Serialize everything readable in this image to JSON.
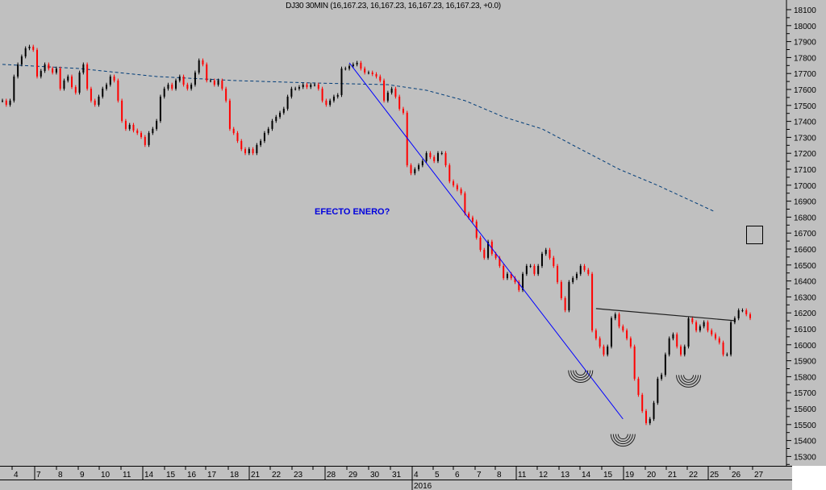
{
  "header": {
    "title": "DJ30 30MIN (16,167.23, 16,167.23, 16,167.23, 16,167.23, +0.0)"
  },
  "annotation": {
    "text": "EFECTO ENERO?",
    "color": "#0000dd"
  },
  "colors": {
    "background": "#c0c0c0",
    "up": "#000000",
    "down": "#ff0000",
    "trendline": "#0000ff",
    "moving_average": "#003c78",
    "resistance": "#202020"
  },
  "chart_data": {
    "type": "candlestick",
    "symbol": "DJ30",
    "timeframe": "30MIN",
    "ylim": [
      15250,
      18150
    ],
    "y_ticks": [
      18100,
      18000,
      17900,
      17800,
      17700,
      17600,
      17500,
      17400,
      17300,
      17200,
      17100,
      17000,
      16900,
      16800,
      16700,
      16600,
      16500,
      16400,
      16300,
      16200,
      16100,
      16000,
      15900,
      15800,
      15700,
      15600,
      15500,
      15400,
      15300
    ],
    "x_ticks": [
      "4",
      "7",
      "8",
      "9",
      "10",
      "11",
      "14",
      "15",
      "16",
      "17",
      "18",
      "21",
      "22",
      "23",
      "",
      "28",
      "29",
      "30",
      "31",
      "4",
      "5",
      "6",
      "7",
      "8",
      "11",
      "12",
      "13",
      "14",
      "15",
      "19",
      "20",
      "21",
      "22",
      "25",
      "26",
      "27"
    ],
    "x_year_label": "2016",
    "grid": false,
    "closes": [
      17530,
      17504,
      17530,
      17681,
      17757,
      17807,
      17858,
      17868,
      17848,
      17681,
      17716,
      17757,
      17731,
      17706,
      17731,
      17605,
      17656,
      17681,
      17615,
      17580,
      17706,
      17757,
      17605,
      17530,
      17504,
      17555,
      17605,
      17630,
      17681,
      17656,
      17530,
      17403,
      17353,
      17378,
      17343,
      17327,
      17302,
      17252,
      17327,
      17353,
      17403,
      17555,
      17605,
      17630,
      17605,
      17656,
      17681,
      17630,
      17605,
      17630,
      17706,
      17782,
      17757,
      17656,
      17656,
      17630,
      17656,
      17605,
      17530,
      17353,
      17327,
      17277,
      17226,
      17201,
      17226,
      17201,
      17252,
      17277,
      17327,
      17353,
      17403,
      17428,
      17454,
      17479,
      17555,
      17605,
      17605,
      17615,
      17630,
      17615,
      17630,
      17630,
      17605,
      17530,
      17504,
      17530,
      17555,
      17565,
      17731,
      17731,
      17746,
      17757,
      17767,
      17731,
      17706,
      17706,
      17696,
      17681,
      17656,
      17530,
      17580,
      17605,
      17555,
      17479,
      17454,
      17125,
      17075,
      17100,
      17125,
      17151,
      17201,
      17176,
      17151,
      17201,
      17201,
      17125,
      17024,
      16999,
      16974,
      16949,
      16822,
      16797,
      16772,
      16671,
      16595,
      16545,
      16646,
      16570,
      16545,
      16494,
      16418,
      16444,
      16418,
      16393,
      16343,
      16444,
      16494,
      16494,
      16444,
      16494,
      16570,
      16595,
      16545,
      16494,
      16393,
      16292,
      16216,
      16393,
      16418,
      16444,
      16494,
      16469,
      16444,
      16090,
      16040,
      15989,
      15939,
      15989,
      16166,
      16191,
      16115,
      16090,
      16040,
      15989,
      15787,
      15686,
      15585,
      15509,
      15535,
      15636,
      15787,
      15812,
      15939,
      16040,
      16065,
      15989,
      15939,
      15989,
      16166,
      16141,
      16090,
      16115,
      16141,
      16090,
      16065,
      16040,
      16014,
      15939,
      15939,
      16141,
      16166,
      16216,
      16216,
      16191,
      16167
    ],
    "moving_average": {
      "style": "dashed",
      "points": [
        [
          0,
          17757
        ],
        [
          20,
          17731
        ],
        [
          40,
          17681
        ],
        [
          60,
          17656
        ],
        [
          80,
          17641
        ],
        [
          100,
          17630
        ],
        [
          110,
          17595
        ],
        [
          120,
          17530
        ],
        [
          130,
          17428
        ],
        [
          140,
          17353
        ],
        [
          150,
          17226
        ],
        [
          160,
          17100
        ],
        [
          170,
          16999
        ],
        [
          185,
          16832
        ]
      ]
    },
    "trendline": {
      "points": [
        [
          90,
          17767
        ],
        [
          161,
          15535
        ]
      ]
    },
    "resistance_line": {
      "points": [
        [
          154,
          16227
        ],
        [
          190,
          16151
        ]
      ]
    },
    "arc_markers": [
      [
        150,
        15840
      ],
      [
        161,
        15440
      ],
      [
        178,
        15810
      ]
    ]
  }
}
